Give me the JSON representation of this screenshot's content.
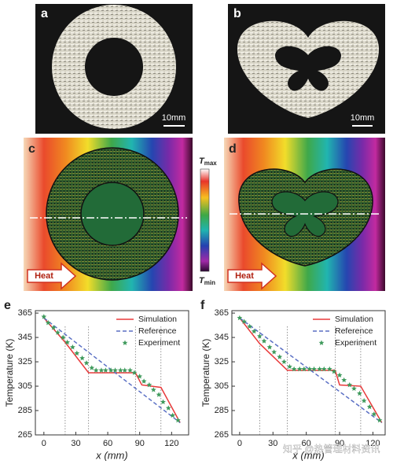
{
  "panel_labels": [
    "a",
    "b",
    "c",
    "d"
  ],
  "scale_bars": [
    "10mm",
    "10mm"
  ],
  "colorbar": {
    "max": {
      "symbol": "T",
      "sub": "max"
    },
    "min": {
      "symbol": "T",
      "sub": "min"
    }
  },
  "heat_labels": [
    "Heat",
    "Heat"
  ],
  "watermark": "知乎 @热管理材料资讯",
  "chart_data": [
    {
      "type": "line",
      "panel": "e",
      "xlabel": "x (mm)",
      "ylabel": "Temperature (K)",
      "xlim": [
        -8,
        136
      ],
      "xticks": [
        0,
        30,
        60,
        90,
        120
      ],
      "ylim": [
        265,
        367
      ],
      "yticks": [
        265,
        285,
        305,
        325,
        345,
        365
      ],
      "vlines": [
        20,
        42,
        86,
        110
      ],
      "series": [
        {
          "name": "Simulation",
          "color": "#e8393a",
          "style": "solid",
          "x": [
            0,
            20,
            42,
            86,
            92,
            110,
            128
          ],
          "values": [
            361,
            341,
            316,
            316,
            306,
            304,
            275
          ]
        },
        {
          "name": "Reference",
          "color": "#5a6fc4",
          "style": "dashed",
          "x": [
            0,
            128
          ],
          "values": [
            361,
            275
          ]
        },
        {
          "name": "Experiment",
          "color": "#3f9a5c",
          "style": "star",
          "x": [
            0,
            4,
            9,
            13,
            18,
            22,
            27,
            31,
            36,
            40,
            45,
            49,
            54,
            58,
            63,
            67,
            72,
            76,
            81,
            85,
            90,
            94,
            99,
            103,
            108,
            112,
            117,
            121,
            126
          ],
          "values": [
            362,
            357,
            353,
            349,
            345,
            341,
            337,
            332,
            328,
            324,
            320,
            318,
            318,
            318,
            318,
            318,
            318,
            318,
            318,
            316,
            313,
            309,
            306,
            302,
            298,
            292,
            287,
            281,
            277
          ]
        }
      ]
    },
    {
      "type": "line",
      "panel": "f",
      "xlabel": "x (mm)",
      "ylabel": "Temperature (K)",
      "xlim": [
        -7,
        131
      ],
      "xticks": [
        0,
        30,
        60,
        90,
        120
      ],
      "ylim": [
        265,
        367
      ],
      "yticks": [
        265,
        285,
        305,
        325,
        345,
        365
      ],
      "vlines": [
        18,
        43,
        86,
        109
      ],
      "series": [
        {
          "name": "Simulation",
          "color": "#e8393a",
          "style": "solid",
          "x": [
            0,
            18,
            43,
            86,
            90,
            109,
            128
          ],
          "values": [
            361,
            340,
            318,
            318,
            306,
            305,
            275
          ]
        },
        {
          "name": "Reference",
          "color": "#5a6fc4",
          "style": "dashed",
          "x": [
            0,
            128
          ],
          "values": [
            361,
            275
          ]
        },
        {
          "name": "Experiment",
          "color": "#3f9a5c",
          "style": "star",
          "x": [
            0,
            4,
            9,
            13,
            18,
            22,
            27,
            31,
            36,
            40,
            45,
            49,
            54,
            58,
            63,
            67,
            72,
            76,
            81,
            85,
            90,
            94,
            99,
            103,
            108,
            112,
            117,
            121,
            126
          ],
          "values": [
            361,
            358,
            354,
            350,
            346,
            342,
            337,
            333,
            329,
            325,
            321,
            319,
            319,
            319,
            319,
            319,
            319,
            319,
            319,
            317,
            314,
            310,
            306,
            303,
            299,
            293,
            288,
            282,
            277
          ]
        }
      ]
    }
  ]
}
